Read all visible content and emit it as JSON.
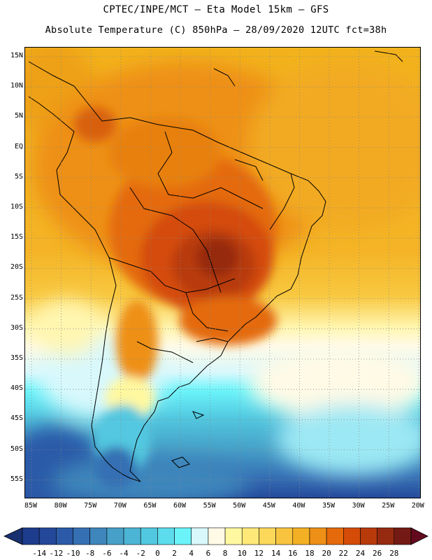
{
  "title_line1": "CPTEC/INPE/MCT –  Eta Model 15km – GFS",
  "title_line2": "Absolute Temperature (C) 850hPa – 28/09/2020 12UTC fct=38h",
  "lat_labels": [
    "15N",
    "10N",
    "5N",
    "EQ",
    "5S",
    "10S",
    "15S",
    "20S",
    "25S",
    "30S",
    "35S",
    "40S",
    "45S",
    "50S",
    "55S"
  ],
  "lon_labels": [
    "85W",
    "80W",
    "75W",
    "70W",
    "65W",
    "60W",
    "55W",
    "50W",
    "45W",
    "40W",
    "35W",
    "30W",
    "25W",
    "20W"
  ],
  "colorbar": {
    "labels": [
      "-14",
      "-12",
      "-10",
      "-8",
      "-6",
      "-4",
      "-2",
      "0",
      "2",
      "4",
      "6",
      "8",
      "10",
      "12",
      "14",
      "16",
      "18",
      "20",
      "22",
      "24",
      "26",
      "28"
    ],
    "colors": [
      "#1e3c8c",
      "#24489a",
      "#2c5aa8",
      "#3670b4",
      "#3e86bc",
      "#46a0c8",
      "#4cb4d4",
      "#52c8e0",
      "#5cdcec",
      "#6af4fa",
      "#d8f8fc",
      "#fffae6",
      "#fff8a0",
      "#fee878",
      "#fcd85a",
      "#f8c440",
      "#f4b024",
      "#ee9018",
      "#e46a0c",
      "#d44c08",
      "#b83a0a",
      "#962a10",
      "#741a14"
    ],
    "colors_note": "ordered from lowest to highest class",
    "under_color": "#183070",
    "over_color": "#640a1e"
  },
  "icons": {
    "colorbar_arrows": "triangle-arrow"
  }
}
